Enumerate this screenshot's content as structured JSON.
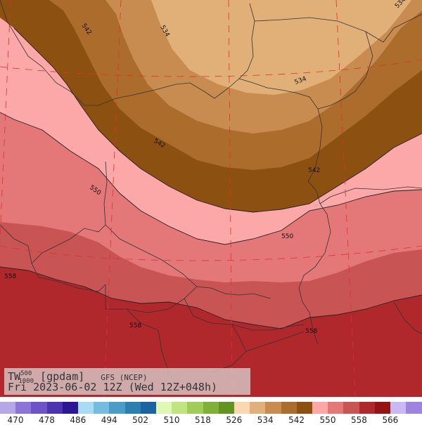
{
  "title": {
    "variable": "TW",
    "level_top": "500",
    "level_bottom": "1000",
    "units": "[gpdam]",
    "model": "GFS (NCEP)",
    "valid": "Fri 2023-06-02 12Z (Wed 12Z+048h)"
  },
  "contour_labels": [
    "534",
    "542",
    "550",
    "558"
  ],
  "legend": {
    "ticks": [
      "470",
      "478",
      "486",
      "494",
      "502",
      "510",
      "518",
      "526",
      "534",
      "542",
      "550",
      "558",
      "566"
    ],
    "colors": [
      "#b4a8e8",
      "#8c74d8",
      "#6c54c8",
      "#4c34b0",
      "#2c1894",
      "#a8dcf4",
      "#74bce0",
      "#4c9cc8",
      "#2c80b0",
      "#1c64a0",
      "#e0f8b4",
      "#c0e480",
      "#a0cc58",
      "#80b038",
      "#649420",
      "#fcd8b0",
      "#e0b078",
      "#c88c50",
      "#ac6c2c",
      "#8c5010",
      "#fca8a8",
      "#e47878",
      "#c85454",
      "#b0282c",
      "#941414",
      "#c8b8f4",
      "#9c84e0"
    ]
  },
  "colors": {
    "band_526": "#e5b07a",
    "band_534": "#cc8d52",
    "band_542": "#a86a2c",
    "band_550": "#fca8a8",
    "band_558": "#e47878",
    "band_566": "#c85454",
    "band_574": "#b0282c",
    "meridian": "#e03030"
  }
}
